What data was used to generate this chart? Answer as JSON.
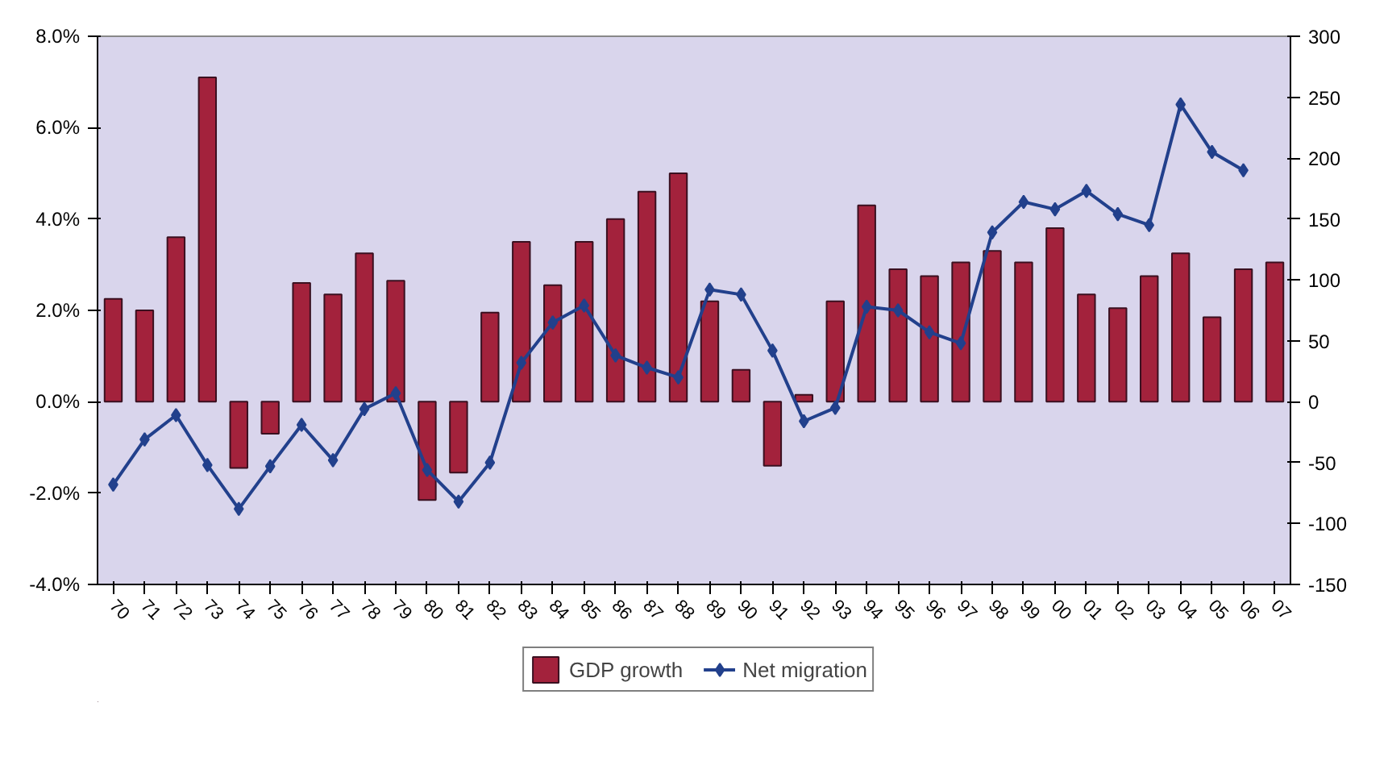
{
  "chart_data": {
    "type": "bar",
    "categories": [
      "70",
      "71",
      "72",
      "73",
      "74",
      "75",
      "76",
      "77",
      "78",
      "79",
      "80",
      "81",
      "82",
      "83",
      "84",
      "85",
      "86",
      "87",
      "88",
      "89",
      "90",
      "91",
      "92",
      "93",
      "94",
      "95",
      "96",
      "97",
      "98",
      "99",
      "00",
      "01",
      "02",
      "03",
      "04",
      "05",
      "06",
      "07"
    ],
    "series": [
      {
        "name": "GDP growth",
        "color": "#a3223c",
        "values": [
          2.25,
          2.0,
          3.6,
          7.1,
          -1.45,
          -0.7,
          2.6,
          2.35,
          3.25,
          2.65,
          -2.15,
          -1.55,
          1.95,
          3.5,
          2.55,
          3.5,
          4.0,
          4.6,
          5.0,
          2.2,
          0.7,
          -1.4,
          0.15,
          2.2,
          4.3,
          2.9,
          2.75,
          3.05,
          3.3,
          3.05,
          3.8,
          2.35,
          2.05,
          2.75,
          3.25,
          1.85,
          2.9,
          3.05
        ]
      },
      {
        "name": "Net migration",
        "type": "line",
        "axis": "y2",
        "color": "#22408c",
        "marker": "diamond",
        "values": [
          -68,
          -31,
          -11,
          -52,
          -88,
          -53,
          -19,
          -48,
          -6,
          7,
          -56,
          -82,
          -50,
          32,
          65,
          79,
          38,
          28,
          20,
          92,
          88,
          42,
          -16,
          -5,
          78,
          75,
          57,
          48,
          139,
          164,
          158,
          173,
          154,
          145,
          244,
          205,
          190,
          null
        ]
      }
    ],
    "ylim": [
      -4,
      8
    ],
    "yticks": [
      {
        "value": -4,
        "label": "-4.0%"
      },
      {
        "value": -2,
        "label": "-2.0%"
      },
      {
        "value": 0,
        "label": "0.0%"
      },
      {
        "value": 2,
        "label": "2.0%"
      },
      {
        "value": 4,
        "label": "4.0%"
      },
      {
        "value": 6,
        "label": "6.0%"
      },
      {
        "value": 8,
        "label": "8.0%"
      }
    ],
    "y2lim": [
      -150,
      300
    ],
    "y2ticks": [
      -150,
      -100,
      -50,
      0,
      50,
      100,
      150,
      200,
      250,
      300
    ],
    "grid": false,
    "legend": "bottom"
  }
}
